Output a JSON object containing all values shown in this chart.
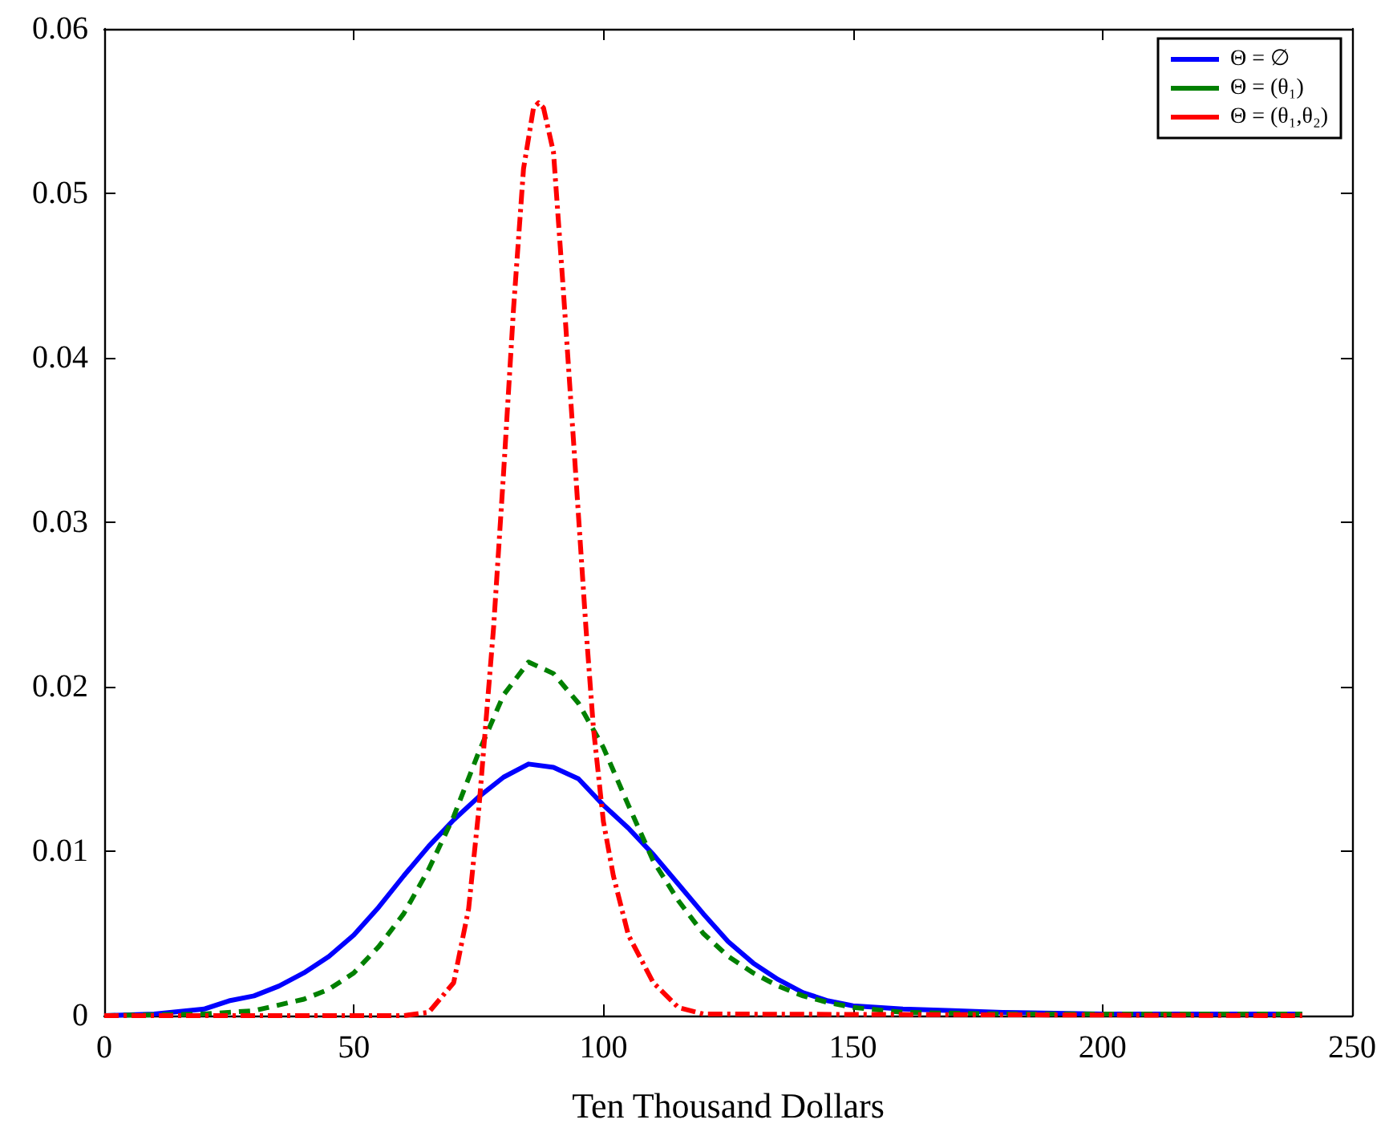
{
  "chart_data": {
    "type": "line",
    "xlabel": "Ten Thousand Dollars",
    "xlim": [
      0,
      250
    ],
    "xticks": [
      0,
      50,
      100,
      150,
      200,
      250
    ],
    "ylim": [
      0,
      0.06
    ],
    "yticks": [
      0,
      0.01,
      0.02,
      0.03,
      0.04,
      0.05,
      0.06
    ],
    "grid": false,
    "legend": "top right",
    "marker": "none",
    "series": [
      {
        "name": "Θ = ∅",
        "color": "#0000ff",
        "line_style": "solid",
        "x": [
          0,
          10,
          20,
          25,
          30,
          35,
          40,
          45,
          50,
          55,
          60,
          65,
          70,
          75,
          80,
          85,
          90,
          95,
          100,
          105,
          110,
          115,
          120,
          125,
          130,
          135,
          140,
          145,
          150,
          160,
          170,
          180,
          200,
          220,
          240
        ],
        "values": [
          0,
          0.0001,
          0.0004,
          0.0009,
          0.0012,
          0.0018,
          0.0026,
          0.0036,
          0.0049,
          0.0066,
          0.0085,
          0.0103,
          0.0119,
          0.0133,
          0.0145,
          0.0153,
          0.0151,
          0.0144,
          0.0128,
          0.0114,
          0.0098,
          0.008,
          0.0062,
          0.0045,
          0.0032,
          0.0022,
          0.0014,
          0.0009,
          0.0006,
          0.0004,
          0.0003,
          0.0002,
          0.0001,
          0.0001,
          0.0001
        ]
      },
      {
        "name": "Θ = (θ₁)",
        "color": "#008000",
        "line_style": "dashed",
        "x": [
          0,
          20,
          30,
          40,
          45,
          50,
          55,
          60,
          65,
          70,
          75,
          80,
          85,
          90,
          95,
          100,
          105,
          110,
          115,
          120,
          125,
          130,
          135,
          140,
          145,
          150,
          160,
          180,
          240
        ],
        "values": [
          0,
          0.0001,
          0.0003,
          0.001,
          0.0016,
          0.0026,
          0.0042,
          0.0062,
          0.0089,
          0.0121,
          0.016,
          0.0195,
          0.0215,
          0.0208,
          0.019,
          0.0163,
          0.0128,
          0.0094,
          0.007,
          0.005,
          0.0036,
          0.0026,
          0.0018,
          0.0012,
          0.0008,
          0.0005,
          0.0002,
          0.0001,
          0.0001
        ]
      },
      {
        "name": "Θ = (θ₁,θ₂)",
        "color": "#ff0000",
        "line_style": "dashdot",
        "x": [
          0,
          60,
          65,
          70,
          73,
          75,
          78,
          80,
          82,
          84,
          86,
          87,
          88,
          90,
          92,
          94,
          96.5,
          98,
          100,
          102,
          105,
          110,
          115,
          120,
          240
        ],
        "values": [
          0,
          0,
          0.0002,
          0.002,
          0.0065,
          0.0124,
          0.0236,
          0.033,
          0.043,
          0.0515,
          0.0552,
          0.0555,
          0.0552,
          0.0525,
          0.044,
          0.035,
          0.0236,
          0.0175,
          0.0118,
          0.0085,
          0.0049,
          0.002,
          0.0005,
          0.0001,
          0
        ]
      }
    ]
  }
}
